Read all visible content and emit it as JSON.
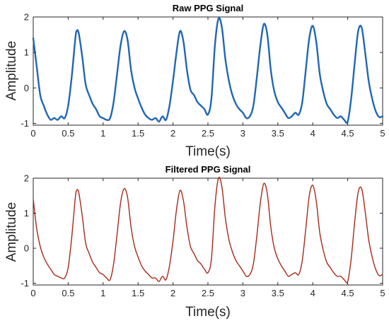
{
  "chart_data": [
    {
      "type": "line",
      "title": "Raw PPG Signal",
      "xlabel": "Time(s)",
      "ylabel": "Amplitude",
      "xlim": [
        0,
        5
      ],
      "ylim": [
        -1.05,
        2
      ],
      "xticks": [
        0,
        0.5,
        1,
        1.5,
        2,
        2.5,
        3,
        3.5,
        4,
        4.5,
        5
      ],
      "xtick_labels": [
        "0",
        "0.5",
        "1",
        "1.5",
        "2",
        "2.5",
        "3",
        "3.5",
        "4",
        "4.5",
        "5"
      ],
      "yticks": [
        -1,
        0,
        1,
        2
      ],
      "ytick_labels": [
        "-1",
        "0",
        "1",
        "2"
      ],
      "grid": false,
      "color": "#2166b5",
      "series": [
        {
          "x": [
            0,
            0.05,
            0.1,
            0.15,
            0.2,
            0.25,
            0.3,
            0.35,
            0.4,
            0.45,
            0.5,
            0.55,
            0.6,
            0.62,
            0.65,
            0.7,
            0.75,
            0.8,
            0.85,
            0.9,
            0.95,
            1.0,
            1.05,
            1.1,
            1.15,
            1.2,
            1.25,
            1.3,
            1.35,
            1.4,
            1.45,
            1.5,
            1.55,
            1.6,
            1.65,
            1.7,
            1.75,
            1.8,
            1.85,
            1.9,
            1.95,
            2.0,
            2.05,
            2.1,
            2.15,
            2.2,
            2.25,
            2.3,
            2.35,
            2.4,
            2.45,
            2.5,
            2.55,
            2.6,
            2.65,
            2.7,
            2.75,
            2.8,
            2.85,
            2.9,
            2.95,
            3.0,
            3.05,
            3.1,
            3.15,
            3.2,
            3.25,
            3.3,
            3.35,
            3.4,
            3.45,
            3.5,
            3.55,
            3.6,
            3.65,
            3.7,
            3.75,
            3.8,
            3.85,
            3.9,
            3.95,
            4.0,
            4.05,
            4.1,
            4.15,
            4.2,
            4.25,
            4.3,
            4.35,
            4.4,
            4.45,
            4.5,
            4.55,
            4.6,
            4.65,
            4.7,
            4.75,
            4.8,
            4.85,
            4.9,
            4.95,
            5.0
          ],
          "y": [
            1.4,
            0.6,
            -0.2,
            -0.5,
            -0.75,
            -0.9,
            -0.85,
            -0.9,
            -0.8,
            -0.85,
            -0.5,
            0.3,
            1.35,
            1.6,
            1.55,
            0.9,
            0.1,
            -0.2,
            -0.45,
            -0.6,
            -0.8,
            -0.85,
            -0.9,
            -0.85,
            -0.4,
            0.4,
            1.2,
            1.6,
            1.35,
            0.5,
            0.0,
            -0.3,
            -0.55,
            -0.75,
            -0.85,
            -0.9,
            -0.85,
            -0.95,
            -0.8,
            -0.9,
            -0.5,
            0.2,
            1.0,
            1.6,
            1.3,
            0.5,
            -0.05,
            -0.2,
            -0.4,
            -0.5,
            -0.6,
            -0.75,
            -0.3,
            1.2,
            1.95,
            1.7,
            0.8,
            0.2,
            -0.2,
            -0.45,
            -0.6,
            -0.7,
            -0.85,
            -0.8,
            -0.5,
            0.3,
            1.2,
            1.8,
            1.5,
            0.5,
            -0.1,
            -0.4,
            -0.55,
            -0.7,
            -0.85,
            -0.8,
            -0.7,
            -0.75,
            -0.4,
            0.5,
            1.4,
            1.75,
            1.3,
            0.4,
            -0.1,
            -0.45,
            -0.6,
            -0.75,
            -0.85,
            -0.8,
            -0.9,
            -0.95,
            -0.3,
            0.7,
            1.6,
            1.7,
            1.0,
            0.2,
            -0.3,
            -0.65,
            -0.82,
            -0.8
          ]
        }
      ]
    },
    {
      "type": "line",
      "title": "Filtered PPG Signal",
      "xlabel": "Time(s)",
      "ylabel": "Amplitude",
      "xlim": [
        0,
        5
      ],
      "ylim": [
        -1.05,
        2
      ],
      "xticks": [
        0,
        0.5,
        1,
        1.5,
        2,
        2.5,
        3,
        3.5,
        4,
        4.5,
        5
      ],
      "xtick_labels": [
        "0",
        "0.5",
        "1",
        "1.5",
        "2",
        "2.5",
        "3",
        "3.5",
        "4",
        "4.5",
        "5"
      ],
      "yticks": [
        -1,
        0,
        1,
        2
      ],
      "ytick_labels": [
        "-1",
        "0",
        "1",
        "2"
      ],
      "grid": false,
      "color": "#a52a1a",
      "series": [
        {
          "x": [
            0,
            0.05,
            0.1,
            0.15,
            0.2,
            0.25,
            0.3,
            0.35,
            0.4,
            0.45,
            0.5,
            0.55,
            0.6,
            0.62,
            0.65,
            0.7,
            0.75,
            0.8,
            0.85,
            0.9,
            0.95,
            1.0,
            1.05,
            1.1,
            1.15,
            1.2,
            1.25,
            1.3,
            1.35,
            1.4,
            1.45,
            1.5,
            1.55,
            1.6,
            1.65,
            1.7,
            1.75,
            1.8,
            1.85,
            1.9,
            1.95,
            2.0,
            2.05,
            2.1,
            2.15,
            2.2,
            2.25,
            2.3,
            2.35,
            2.4,
            2.45,
            2.5,
            2.55,
            2.6,
            2.65,
            2.7,
            2.75,
            2.8,
            2.85,
            2.9,
            2.95,
            3.0,
            3.05,
            3.1,
            3.15,
            3.2,
            3.25,
            3.3,
            3.35,
            3.4,
            3.45,
            3.5,
            3.55,
            3.6,
            3.65,
            3.7,
            3.75,
            3.8,
            3.85,
            3.9,
            3.95,
            4.0,
            4.05,
            4.1,
            4.15,
            4.2,
            4.25,
            4.3,
            4.35,
            4.4,
            4.45,
            4.5,
            4.55,
            4.6,
            4.65,
            4.7,
            4.75,
            4.8,
            4.85,
            4.9,
            4.95,
            5.0
          ],
          "y": [
            1.4,
            0.55,
            0.05,
            -0.25,
            -0.45,
            -0.6,
            -0.75,
            -0.8,
            -0.85,
            -0.85,
            -0.55,
            0.3,
            1.4,
            1.65,
            1.6,
            0.95,
            0.15,
            -0.15,
            -0.4,
            -0.55,
            -0.7,
            -0.75,
            -0.85,
            -0.9,
            -0.45,
            0.4,
            1.3,
            1.7,
            1.45,
            0.6,
            0.05,
            -0.25,
            -0.5,
            -0.65,
            -0.75,
            -0.85,
            -0.85,
            -0.95,
            -0.8,
            -0.9,
            -0.5,
            0.2,
            1.1,
            1.65,
            1.35,
            0.6,
            0.05,
            -0.15,
            -0.35,
            -0.45,
            -0.6,
            -0.7,
            -0.3,
            1.2,
            2.0,
            1.75,
            0.85,
            0.25,
            -0.1,
            -0.35,
            -0.5,
            -0.65,
            -0.8,
            -0.75,
            -0.45,
            0.35,
            1.3,
            1.85,
            1.55,
            0.6,
            0.0,
            -0.3,
            -0.5,
            -0.65,
            -0.8,
            -0.75,
            -0.7,
            -0.75,
            -0.35,
            0.55,
            1.5,
            1.8,
            1.35,
            0.45,
            -0.05,
            -0.4,
            -0.55,
            -0.7,
            -0.8,
            -0.8,
            -0.9,
            -0.95,
            -0.3,
            0.75,
            1.6,
            1.7,
            1.05,
            0.25,
            -0.25,
            -0.6,
            -0.78,
            -0.75
          ]
        }
      ]
    }
  ]
}
